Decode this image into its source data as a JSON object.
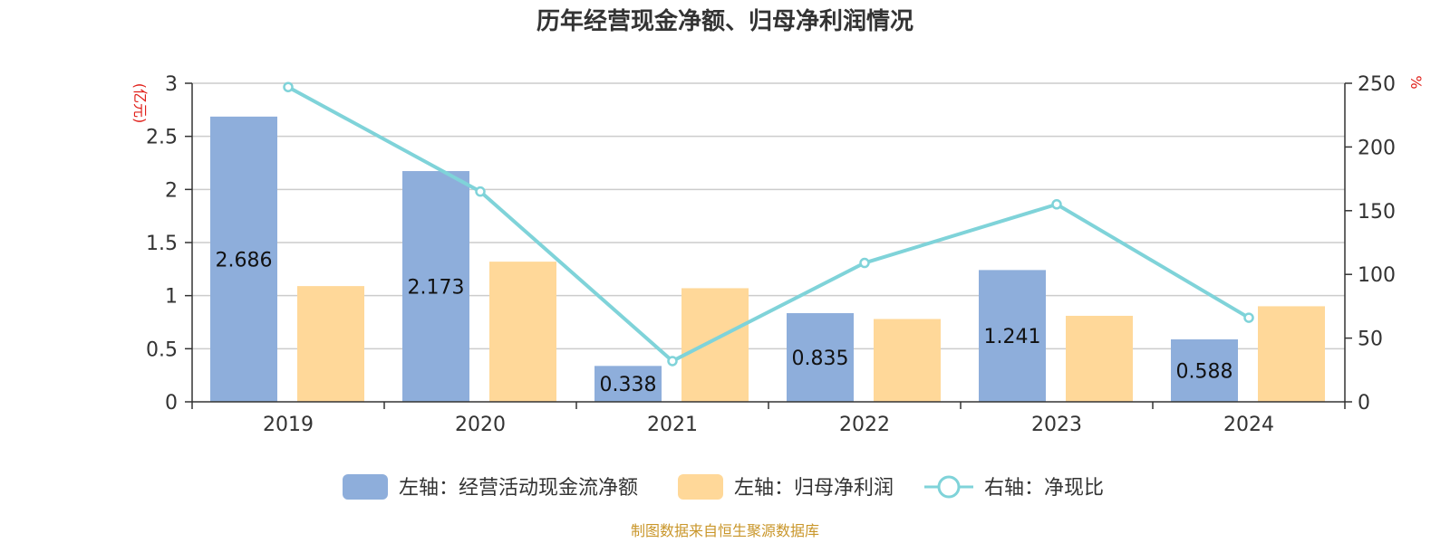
{
  "chart_data": {
    "type": "bar",
    "title": "历年经营现金净额、归母净利润情况",
    "categories": [
      "2019",
      "2020",
      "2021",
      "2022",
      "2023",
      "2024"
    ],
    "y_left_unit": "(亿元)",
    "y_right_unit": "%",
    "ylim_left": [
      0,
      3
    ],
    "ylim_right": [
      0,
      250
    ],
    "y_left_ticks": [
      "0",
      "0.5",
      "1",
      "1.5",
      "2",
      "2.5",
      "3"
    ],
    "y_right_ticks": [
      "0",
      "50",
      "100",
      "150",
      "200",
      "250"
    ],
    "grid": true,
    "legend_position": "bottom",
    "series": [
      {
        "name": "左轴：经营活动现金流净额",
        "type": "bar",
        "axis": "left",
        "values": [
          2.686,
          2.173,
          0.338,
          0.835,
          1.241,
          0.588
        ],
        "labels": [
          "2.686",
          "2.173",
          "0.338",
          "0.835",
          "1.241",
          "0.588"
        ]
      },
      {
        "name": "左轴：归母净利润",
        "type": "bar",
        "axis": "left",
        "values": [
          1.09,
          1.32,
          1.07,
          0.78,
          0.81,
          0.9
        ]
      },
      {
        "name": "右轴：净现比",
        "type": "line",
        "axis": "right",
        "values": [
          247,
          165,
          32,
          109,
          155,
          66
        ]
      }
    ]
  },
  "colors": {
    "bar1": "#8eaedb",
    "bar2": "#ffd899",
    "line": "#7fd3d9",
    "unit": "#e0201a",
    "source": "#c9962a"
  },
  "source_text": "制图数据来自恒生聚源数据库"
}
